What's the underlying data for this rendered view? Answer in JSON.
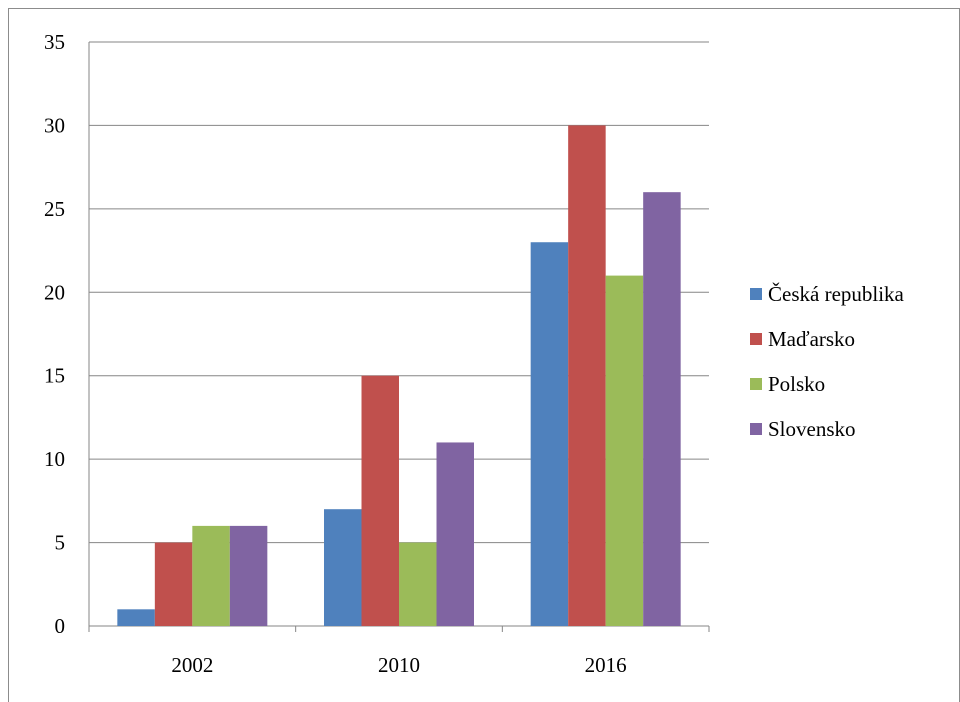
{
  "chart_data": {
    "type": "bar",
    "categories": [
      "2002",
      "2010",
      "2016"
    ],
    "series": [
      {
        "name": "Česká republika",
        "values": [
          1,
          7,
          23
        ],
        "color": "#4f81bd"
      },
      {
        "name": "Maďarsko",
        "values": [
          5,
          15,
          30
        ],
        "color": "#c0504d"
      },
      {
        "name": "Polsko",
        "values": [
          6,
          5,
          21
        ],
        "color": "#9bbb59"
      },
      {
        "name": "Slovensko",
        "values": [
          6,
          11,
          26
        ],
        "color": "#8064a2"
      }
    ],
    "ylim": [
      0,
      35
    ],
    "yticks": [
      "0",
      "5",
      "10",
      "15",
      "20",
      "25",
      "30",
      "35"
    ],
    "grid": true,
    "legend": "right"
  }
}
